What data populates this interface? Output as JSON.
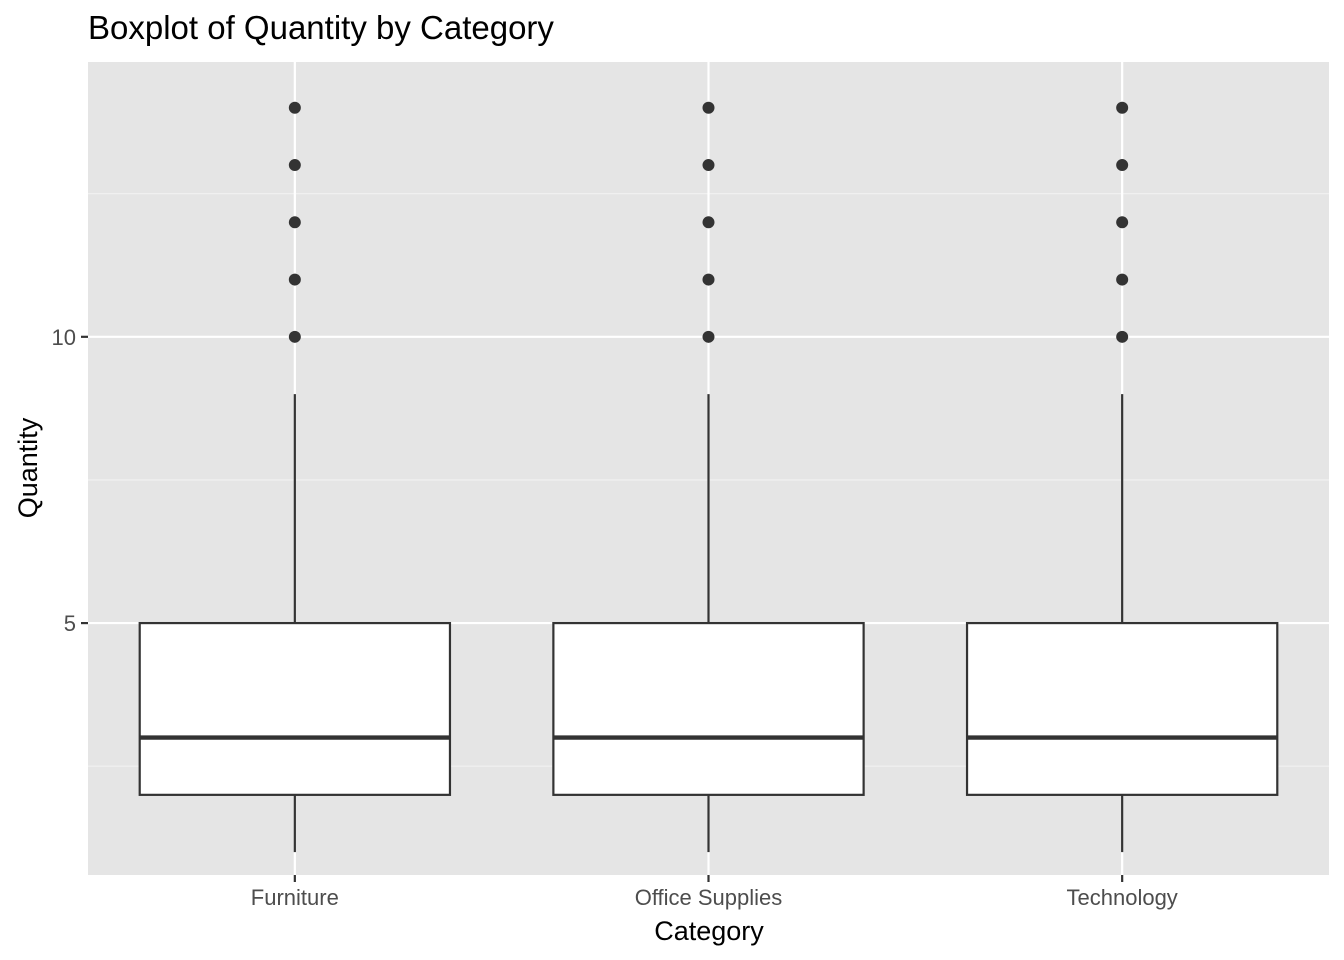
{
  "chart_data": {
    "type": "boxplot",
    "title": "Boxplot of Quantity by Category",
    "xlabel": "Category",
    "ylabel": "Quantity",
    "categories": [
      "Furniture",
      "Office Supplies",
      "Technology"
    ],
    "ylim": [
      0.6,
      14.8
    ],
    "yticks": [
      5,
      10
    ],
    "ytick_labels": [
      "5",
      "10"
    ],
    "y_minor_gridlines": [
      2.5,
      7.5,
      12.5
    ],
    "grid": true,
    "series": [
      {
        "category": "Furniture",
        "whisker_low": 1,
        "q1": 2,
        "median": 3,
        "q3": 5,
        "whisker_high": 9,
        "outliers": [
          10,
          11,
          12,
          13,
          14
        ]
      },
      {
        "category": "Office Supplies",
        "whisker_low": 1,
        "q1": 2,
        "median": 3,
        "q3": 5,
        "whisker_high": 9,
        "outliers": [
          10,
          11,
          12,
          13,
          14
        ]
      },
      {
        "category": "Technology",
        "whisker_low": 1,
        "q1": 2,
        "median": 3,
        "q3": 5,
        "whisker_high": 9,
        "outliers": [
          10,
          11,
          12,
          13,
          14
        ]
      }
    ],
    "colors": {
      "panel_background": "#e5e5e5",
      "grid_major": "#ffffff",
      "grid_minor": "#f2f2f2",
      "box_fill": "#ffffff",
      "box_stroke": "#333333",
      "tick_color": "#333333",
      "tick_label": "#4d4d4d",
      "outlier": "#333333"
    }
  }
}
